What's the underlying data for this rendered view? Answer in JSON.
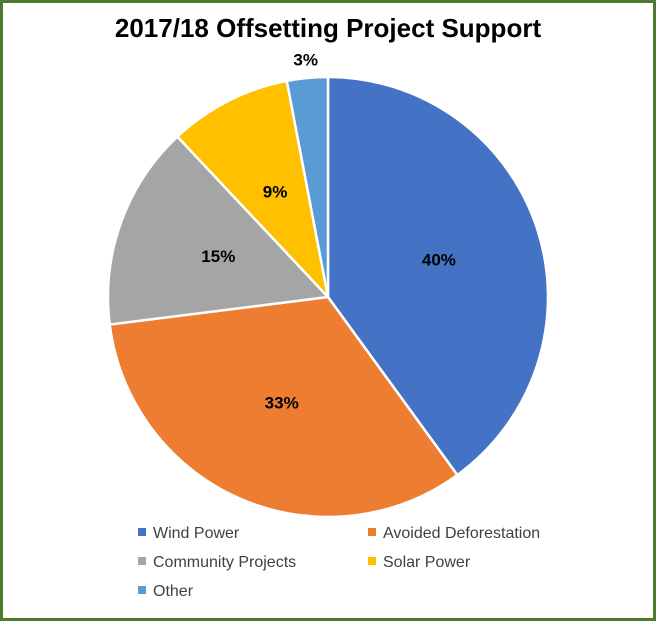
{
  "chart_data": {
    "type": "pie",
    "title": "2017/18 Offsetting Project Support",
    "slices": [
      {
        "name": "Wind Power",
        "value": 40,
        "label": "40%",
        "color": "#4472C4"
      },
      {
        "name": "Avoided Deforestation",
        "value": 33,
        "label": "33%",
        "color": "#ED7D31"
      },
      {
        "name": "Community Projects",
        "value": 15,
        "label": "15%",
        "color": "#A5A5A5"
      },
      {
        "name": "Solar Power",
        "value": 9,
        "label": "9%",
        "color": "#FFC000"
      },
      {
        "name": "Other",
        "value": 3,
        "label": "3%",
        "color": "#5B9BD5"
      }
    ],
    "legend_position": "bottom",
    "border_color": "#4e7a2c"
  }
}
